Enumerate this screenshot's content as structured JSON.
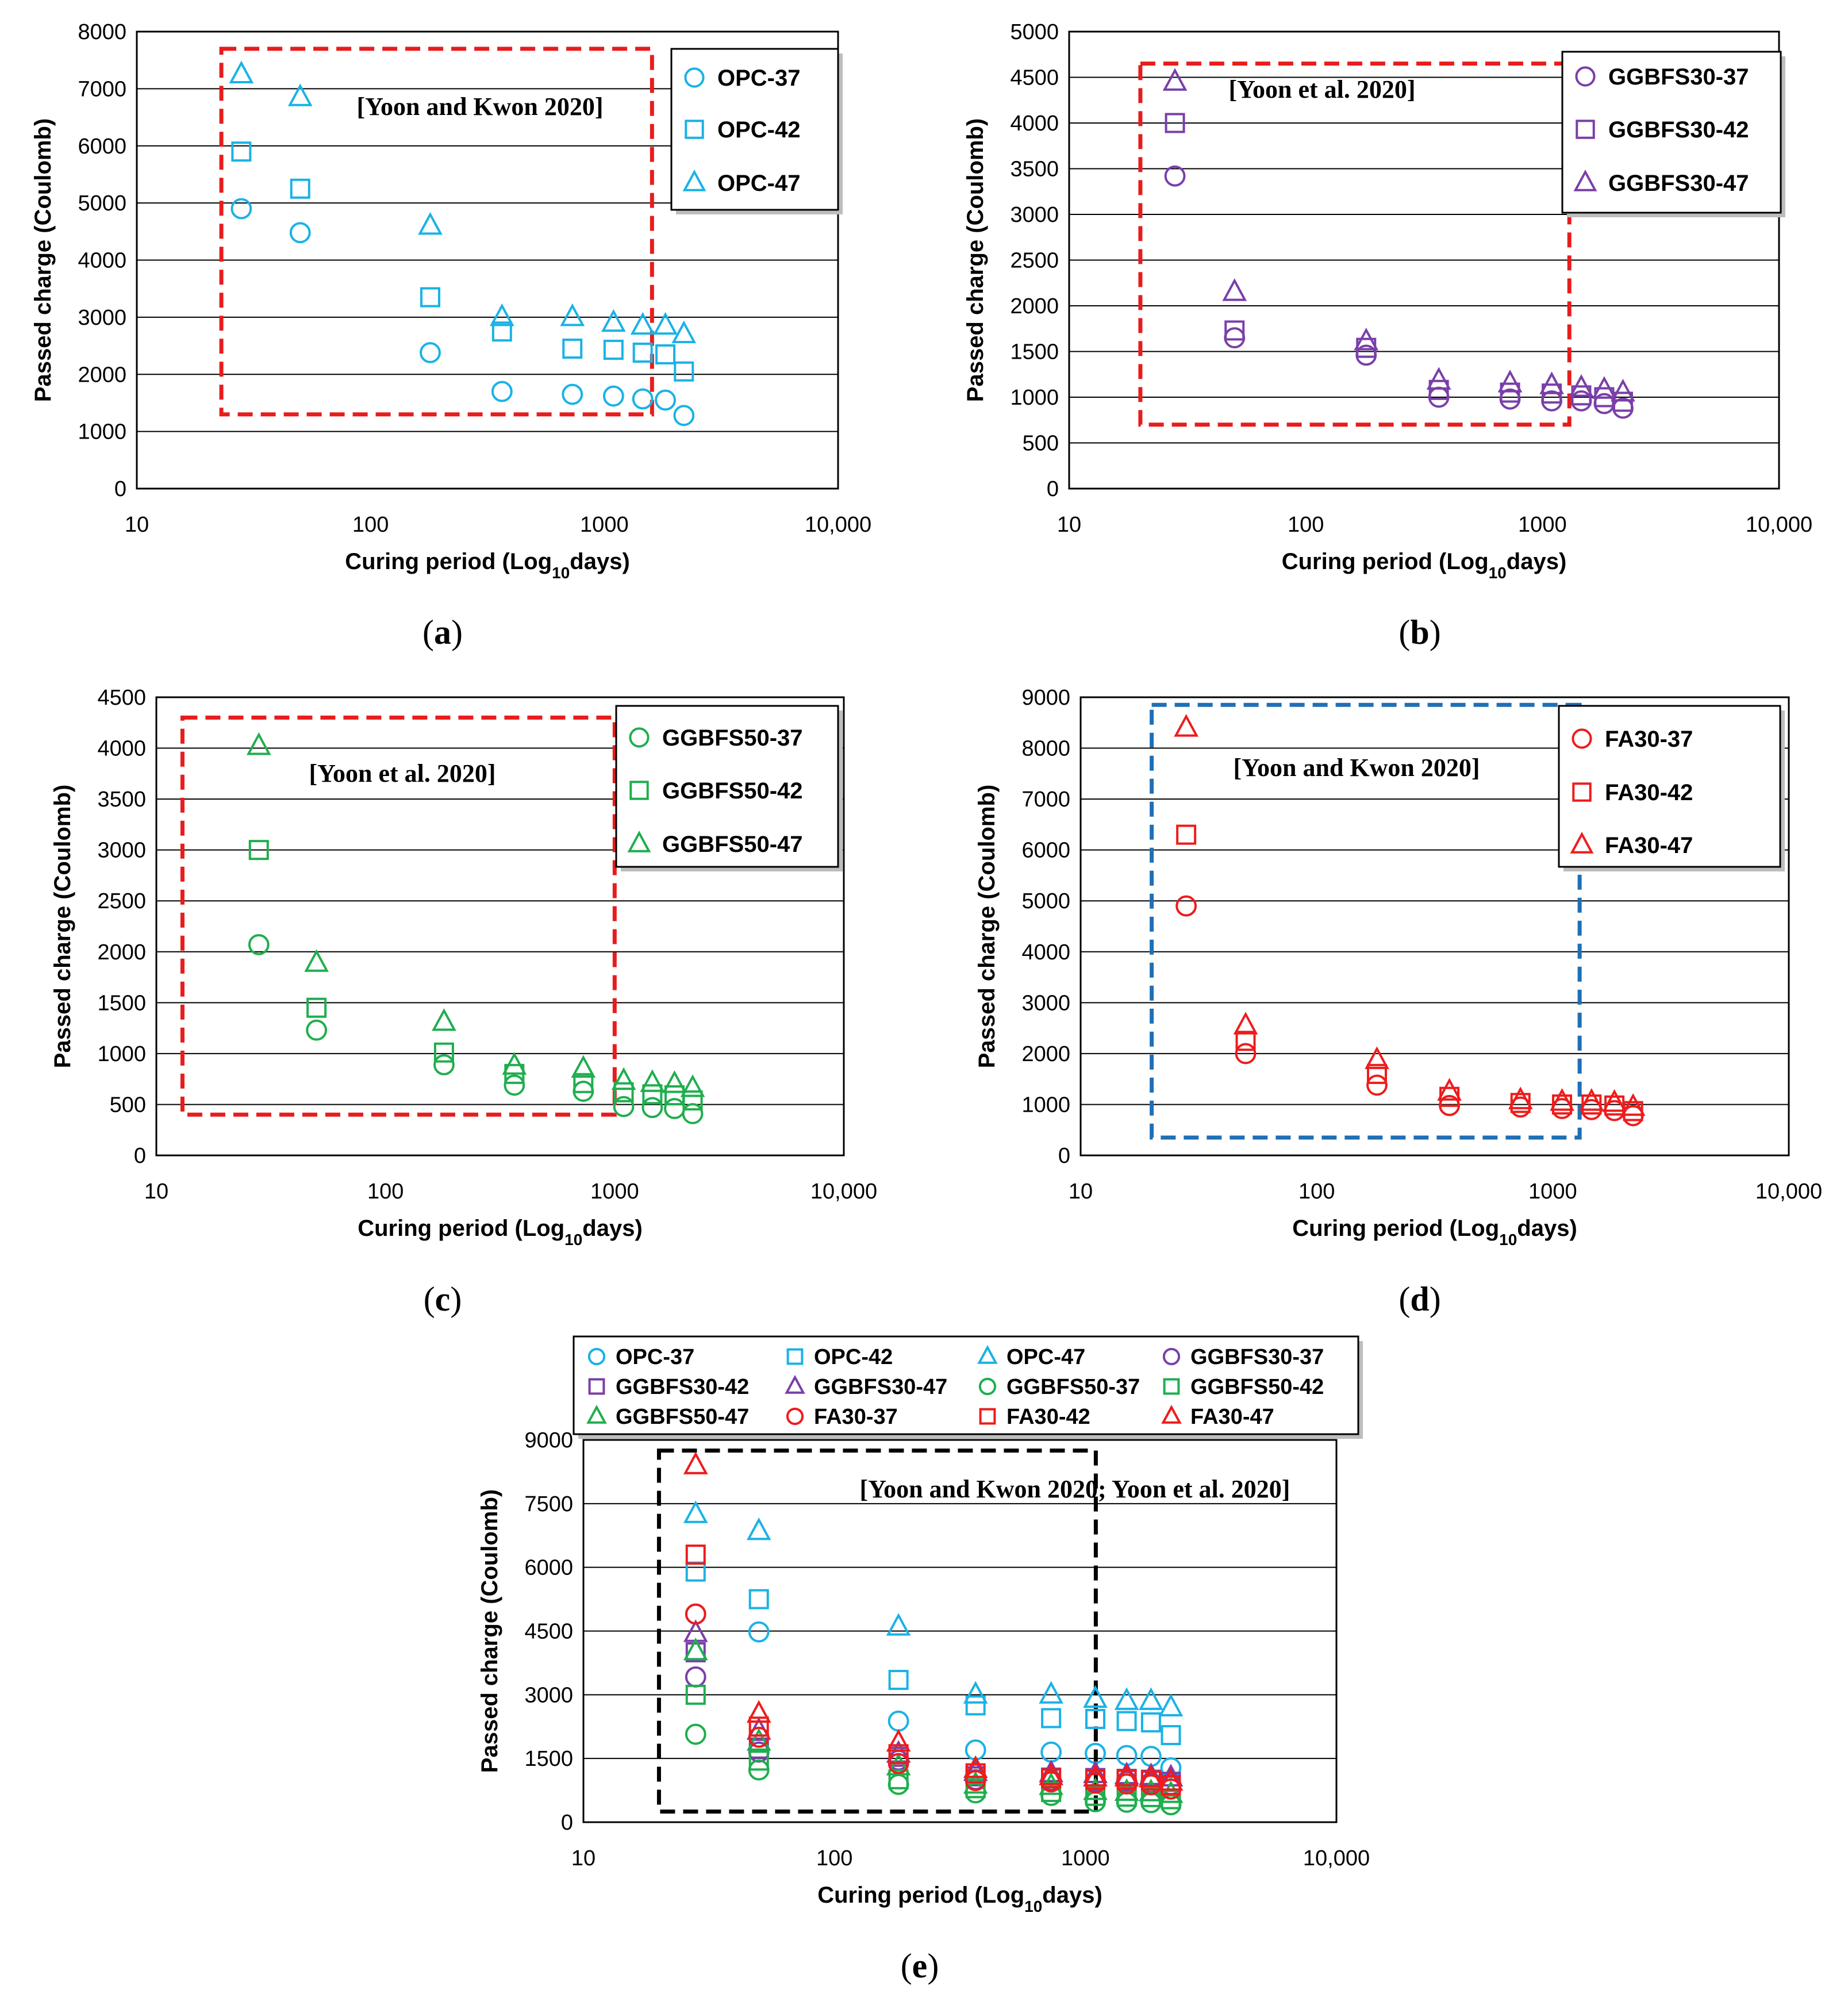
{
  "colors": {
    "OPC": "#1ab2e6",
    "GGBFS30": "#7a3fa8",
    "GGBFS50": "#1fae4e",
    "FA30": "#ee1c1c",
    "box_red": "#e81c1c",
    "box_blue": "#1f6fb5",
    "box_black": "#000000"
  },
  "chart_data": [
    {
      "type": "scatter",
      "panel_label": "a",
      "caption": "(a)",
      "xlabel": "Curing period (Log10days)",
      "ylabel": "Passed charge (Coulomb)",
      "xscale": "log",
      "xlim": [
        10,
        10000
      ],
      "xticks": [
        "10",
        "100",
        "1000",
        "10,000"
      ],
      "ylim": [
        0,
        8000
      ],
      "yticks": [
        "0",
        "1000",
        "2000",
        "3000",
        "4000",
        "5000",
        "6000",
        "7000",
        "8000"
      ],
      "annotation": "[Yoon and Kwon 2020]",
      "box": {
        "x": [
          23,
          1600
        ],
        "y": [
          1300,
          7700
        ],
        "color": "red"
      },
      "legend": [
        "OPC-37",
        "OPC-42",
        "OPC-47"
      ],
      "series": [
        {
          "name": "OPC-37",
          "group": "OPC",
          "marker": "circle",
          "x": [
            28,
            50,
            180,
            365,
            730,
            1095,
            1460,
            1825,
            2190
          ],
          "y": [
            4900,
            4480,
            2380,
            1700,
            1650,
            1620,
            1570,
            1550,
            1280
          ]
        },
        {
          "name": "OPC-42",
          "group": "OPC",
          "marker": "square",
          "x": [
            28,
            50,
            180,
            365,
            730,
            1095,
            1460,
            1825,
            2190
          ],
          "y": [
            5900,
            5250,
            3350,
            2750,
            2450,
            2430,
            2380,
            2350,
            2050
          ]
        },
        {
          "name": "OPC-47",
          "group": "OPC",
          "marker": "triangle",
          "x": [
            28,
            50,
            180,
            365,
            730,
            1095,
            1460,
            1825,
            2190
          ],
          "y": [
            7250,
            6850,
            4600,
            3000,
            3000,
            2900,
            2850,
            2850,
            2700
          ]
        }
      ]
    },
    {
      "type": "scatter",
      "panel_label": "b",
      "caption": "(b)",
      "xlabel": "Curing period (Log10days)",
      "ylabel": "Passed charge (Coulomb)",
      "xscale": "log",
      "xlim": [
        10,
        10000
      ],
      "xticks": [
        "10",
        "100",
        "1000",
        "10,000"
      ],
      "ylim": [
        0,
        5000
      ],
      "yticks": [
        "0",
        "500",
        "1000",
        "1500",
        "2000",
        "2500",
        "3000",
        "3500",
        "4000",
        "4500",
        "5000"
      ],
      "annotation": "[Yoon et al. 2020]",
      "box": {
        "x": [
          20,
          1300
        ],
        "y": [
          700,
          4650
        ],
        "color": "red"
      },
      "legend": [
        "GGBFS30-37",
        "GGBFS30-42",
        "GGBFS30-47"
      ],
      "series": [
        {
          "name": "GGBFS30-37",
          "group": "GGBFS30",
          "marker": "circle",
          "x": [
            28,
            50,
            180,
            365,
            730,
            1095,
            1460,
            1825,
            2190
          ],
          "y": [
            3420,
            1650,
            1460,
            1000,
            980,
            960,
            960,
            930,
            880
          ]
        },
        {
          "name": "GGBFS30-42",
          "group": "GGBFS30",
          "marker": "square",
          "x": [
            28,
            50,
            180,
            365,
            730,
            1095,
            1460,
            1825,
            2190
          ],
          "y": [
            4000,
            1730,
            1540,
            1080,
            1050,
            1040,
            1020,
            1000,
            950
          ]
        },
        {
          "name": "GGBFS30-47",
          "group": "GGBFS30",
          "marker": "triangle",
          "x": [
            28,
            50,
            180,
            365,
            730,
            1095,
            1460,
            1825,
            2190
          ],
          "y": [
            4450,
            2150,
            1610,
            1180,
            1150,
            1130,
            1100,
            1080,
            1050
          ]
        }
      ]
    },
    {
      "type": "scatter",
      "panel_label": "c",
      "caption": "(c)",
      "xlabel": "Curing period (Log10days)",
      "ylabel": "Passed charge (Coulomb)",
      "xscale": "log",
      "xlim": [
        10,
        10000
      ],
      "xticks": [
        "10",
        "100",
        "1000",
        "10,000"
      ],
      "ylim": [
        0,
        4500
      ],
      "yticks": [
        "0",
        "500",
        "1000",
        "1500",
        "2000",
        "2500",
        "3000",
        "3500",
        "4000",
        "4500"
      ],
      "annotation": "[Yoon et al. 2020]",
      "box": {
        "x": [
          13,
          1000
        ],
        "y": [
          400,
          4300
        ],
        "color": "red"
      },
      "legend": [
        "GGBFS50-37",
        "GGBFS50-42",
        "GGBFS50-47"
      ],
      "series": [
        {
          "name": "GGBFS50-37",
          "group": "GGBFS50",
          "marker": "circle",
          "x": [
            28,
            50,
            180,
            365,
            730,
            1095,
            1460,
            1825,
            2190
          ],
          "y": [
            2070,
            1230,
            890,
            690,
            630,
            480,
            470,
            460,
            410
          ]
        },
        {
          "name": "GGBFS50-42",
          "group": "GGBFS50",
          "marker": "square",
          "x": [
            28,
            50,
            180,
            365,
            730,
            1095,
            1460,
            1825,
            2190
          ],
          "y": [
            3000,
            1450,
            1010,
            800,
            710,
            620,
            600,
            590,
            540
          ]
        },
        {
          "name": "GGBFS50-47",
          "group": "GGBFS50",
          "marker": "triangle",
          "x": [
            28,
            50,
            180,
            365,
            730,
            1095,
            1460,
            1825,
            2190
          ],
          "y": [
            4020,
            1890,
            1310,
            880,
            850,
            730,
            710,
            700,
            660
          ]
        }
      ]
    },
    {
      "type": "scatter",
      "panel_label": "d",
      "caption": "(d)",
      "xlabel": "Curing period (Log10days)",
      "ylabel": "Passed charge (Coulomb)",
      "xscale": "log",
      "xlim": [
        10,
        10000
      ],
      "xticks": [
        "10",
        "100",
        "1000",
        "10,000"
      ],
      "ylim": [
        0,
        9000
      ],
      "yticks": [
        "0",
        "1000",
        "2000",
        "3000",
        "4000",
        "5000",
        "6000",
        "7000",
        "8000",
        "9000"
      ],
      "annotation": "[Yoon and Kwon 2020]",
      "box": {
        "x": [
          20,
          1300
        ],
        "y": [
          350,
          8850
        ],
        "color": "blue"
      },
      "legend": [
        "FA30-37",
        "FA30-42",
        "FA30-47"
      ],
      "series": [
        {
          "name": "FA30-37",
          "group": "FA30",
          "marker": "circle",
          "x": [
            28,
            50,
            180,
            365,
            730,
            1095,
            1460,
            1825,
            2190
          ],
          "y": [
            4900,
            2000,
            1380,
            980,
            950,
            920,
            900,
            880,
            780
          ]
        },
        {
          "name": "FA30-42",
          "group": "FA30",
          "marker": "square",
          "x": [
            28,
            50,
            180,
            365,
            730,
            1095,
            1460,
            1825,
            2190
          ],
          "y": [
            6300,
            2250,
            1600,
            1150,
            1030,
            1000,
            1000,
            980,
            870
          ]
        },
        {
          "name": "FA30-47",
          "group": "FA30",
          "marker": "triangle",
          "x": [
            28,
            50,
            180,
            365,
            730,
            1095,
            1460,
            1825,
            2190
          ],
          "y": [
            8400,
            2550,
            1870,
            1250,
            1080,
            1050,
            1050,
            1030,
            950
          ]
        }
      ]
    },
    {
      "type": "scatter",
      "panel_label": "e",
      "caption": "(e)",
      "xlabel": "Curing period (Log10days)",
      "ylabel": "Passed charge (Coulomb)",
      "xscale": "log",
      "xlim": [
        10,
        10000
      ],
      "xticks": [
        "10",
        "100",
        "1000",
        "10,000"
      ],
      "ylim": [
        0,
        9000
      ],
      "yticks": [
        "0",
        "1500",
        "3000",
        "4500",
        "6000",
        "7500",
        "9000"
      ],
      "annotation": "[Yoon and Kwon 2020; Yoon et al. 2020]",
      "box": {
        "x": [
          20,
          1100
        ],
        "y": [
          250,
          8750
        ],
        "color": "black"
      },
      "legend": [
        "OPC-37",
        "OPC-42",
        "OPC-47",
        "GGBFS30-37",
        "GGBFS30-42",
        "GGBFS30-47",
        "GGBFS50-37",
        "GGBFS50-42",
        "GGBFS50-47",
        "FA30-37",
        "FA30-42",
        "FA30-47"
      ],
      "series": [
        {
          "name": "OPC-37",
          "group": "OPC",
          "marker": "circle",
          "x": [
            28,
            50,
            180,
            365,
            730,
            1095,
            1460,
            1825,
            2190
          ],
          "y": [
            4900,
            4480,
            2380,
            1700,
            1650,
            1620,
            1570,
            1550,
            1280
          ]
        },
        {
          "name": "OPC-42",
          "group": "OPC",
          "marker": "square",
          "x": [
            28,
            50,
            180,
            365,
            730,
            1095,
            1460,
            1825,
            2190
          ],
          "y": [
            5900,
            5250,
            3350,
            2750,
            2450,
            2430,
            2380,
            2350,
            2050
          ]
        },
        {
          "name": "OPC-47",
          "group": "OPC",
          "marker": "triangle",
          "x": [
            28,
            50,
            180,
            365,
            730,
            1095,
            1460,
            1825,
            2190
          ],
          "y": [
            7250,
            6850,
            4600,
            3000,
            3000,
            2900,
            2850,
            2850,
            2700
          ]
        },
        {
          "name": "GGBFS30-37",
          "group": "GGBFS30",
          "marker": "circle",
          "x": [
            28,
            50,
            180,
            365,
            730,
            1095,
            1460,
            1825,
            2190
          ],
          "y": [
            3420,
            1650,
            1460,
            1000,
            980,
            960,
            960,
            930,
            880
          ]
        },
        {
          "name": "GGBFS30-42",
          "group": "GGBFS30",
          "marker": "square",
          "x": [
            28,
            50,
            180,
            365,
            730,
            1095,
            1460,
            1825,
            2190
          ],
          "y": [
            4000,
            1730,
            1540,
            1080,
            1050,
            1040,
            1020,
            1000,
            950
          ]
        },
        {
          "name": "GGBFS30-47",
          "group": "GGBFS30",
          "marker": "triangle",
          "x": [
            28,
            50,
            180,
            365,
            730,
            1095,
            1460,
            1825,
            2190
          ],
          "y": [
            4450,
            2150,
            1610,
            1180,
            1150,
            1130,
            1100,
            1080,
            1050
          ]
        },
        {
          "name": "GGBFS50-37",
          "group": "GGBFS50",
          "marker": "circle",
          "x": [
            28,
            50,
            180,
            365,
            730,
            1095,
            1460,
            1825,
            2190
          ],
          "y": [
            2070,
            1230,
            890,
            690,
            630,
            480,
            470,
            460,
            410
          ]
        },
        {
          "name": "GGBFS50-42",
          "group": "GGBFS50",
          "marker": "square",
          "x": [
            28,
            50,
            180,
            365,
            730,
            1095,
            1460,
            1825,
            2190
          ],
          "y": [
            3000,
            1450,
            1010,
            800,
            710,
            620,
            600,
            590,
            540
          ]
        },
        {
          "name": "GGBFS50-47",
          "group": "GGBFS50",
          "marker": "triangle",
          "x": [
            28,
            50,
            180,
            365,
            730,
            1095,
            1460,
            1825,
            2190
          ],
          "y": [
            4020,
            1890,
            1310,
            880,
            850,
            730,
            710,
            700,
            660
          ]
        },
        {
          "name": "FA30-37",
          "group": "FA30",
          "marker": "circle",
          "x": [
            28,
            50,
            180,
            365,
            730,
            1095,
            1460,
            1825,
            2190
          ],
          "y": [
            4900,
            2000,
            1380,
            980,
            950,
            920,
            900,
            880,
            780
          ]
        },
        {
          "name": "FA30-42",
          "group": "FA30",
          "marker": "square",
          "x": [
            28,
            50,
            180,
            365,
            730,
            1095,
            1460,
            1825,
            2190
          ],
          "y": [
            6300,
            2250,
            1600,
            1150,
            1030,
            1000,
            1000,
            980,
            870
          ]
        },
        {
          "name": "FA30-47",
          "group": "FA30",
          "marker": "triangle",
          "x": [
            28,
            50,
            180,
            365,
            730,
            1095,
            1460,
            1825,
            2190
          ],
          "y": [
            8400,
            2550,
            1870,
            1250,
            1080,
            1050,
            1050,
            1030,
            950
          ]
        }
      ]
    }
  ]
}
